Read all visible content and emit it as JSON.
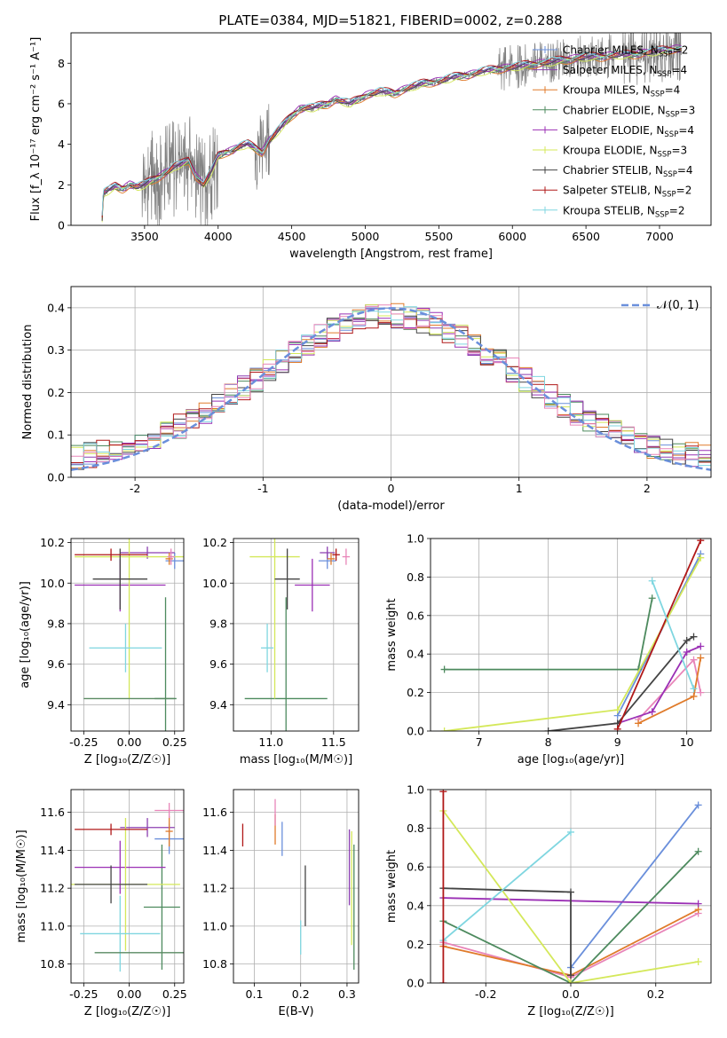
{
  "figure": {
    "title": "PLATE=0384, MJD=51821, FIBERID=0002, z=0.288"
  },
  "chart_data": [
    {
      "id": "spectrum",
      "type": "line",
      "title": "PLATE=0384, MJD=51821, FIBERID=0002, z=0.288",
      "xlabel": "wavelength [Angstrom, rest frame]",
      "ylabel": "Flux [f_λ 10⁻¹⁷ erg cm⁻² s⁻¹ A⁻¹]",
      "xlim": [
        3000,
        7350
      ],
      "ylim": [
        0,
        9.5
      ],
      "xticks": [
        3500,
        4000,
        4500,
        5000,
        5500,
        6000,
        6500,
        7000
      ],
      "yticks": [
        0,
        2,
        4,
        6,
        8
      ],
      "grid": false,
      "legend_position": "top-right",
      "data_color": "#808080",
      "continuum": {
        "x": [
          3210,
          3220,
          3250,
          3300,
          3350,
          3400,
          3450,
          3500,
          3550,
          3600,
          3650,
          3700,
          3750,
          3800,
          3850,
          3900,
          3950,
          4000,
          4050,
          4100,
          4150,
          4200,
          4250,
          4300,
          4350,
          4400,
          4450,
          4500,
          4550,
          4600,
          4650,
          4700,
          4750,
          4800,
          4850,
          4900,
          4950,
          5000,
          5100,
          5200,
          5300,
          5400,
          5500,
          5600,
          5700,
          5800,
          5900,
          6000,
          6100,
          6200,
          6300,
          6400,
          6500,
          6600,
          6700,
          6800,
          6900,
          7000,
          7100,
          7150
        ],
        "y": [
          0.0,
          1.6,
          1.7,
          1.9,
          1.8,
          2.0,
          1.9,
          2.0,
          2.2,
          2.4,
          2.6,
          2.9,
          3.0,
          3.2,
          2.4,
          2.0,
          2.6,
          3.4,
          3.6,
          3.7,
          3.9,
          4.0,
          3.8,
          3.6,
          4.2,
          4.6,
          5.0,
          5.4,
          5.7,
          5.8,
          5.8,
          5.9,
          6.0,
          6.2,
          6.1,
          6.0,
          6.2,
          6.4,
          6.6,
          6.5,
          6.8,
          7.0,
          7.1,
          7.3,
          7.4,
          7.6,
          7.7,
          7.8,
          7.9,
          8.0,
          8.1,
          8.2,
          8.3,
          8.3,
          8.4,
          8.4,
          8.5,
          8.6,
          8.7,
          8.7
        ]
      },
      "series": [
        {
          "name": "Chabrier MILES, N_SSP=2",
          "color": "#6a8fdb",
          "marker": "+",
          "offset": 0.05
        },
        {
          "name": "Salpeter MILES, N_SSP=4",
          "color": "#8c3fb0",
          "marker": "",
          "offset": -0.05
        },
        {
          "name": "Kroupa MILES, N_SSP=4",
          "color": "#e07b2b",
          "marker": "+",
          "offset": -0.1
        },
        {
          "name": "Chabrier ELODIE, N_SSP=3",
          "color": "#4d8a5e",
          "marker": "+",
          "offset": 0.0
        },
        {
          "name": "Salpeter ELODIE, N_SSP=4",
          "color": "#9b30b5",
          "marker": "+",
          "offset": 0.08
        },
        {
          "name": "Kroupa ELODIE, N_SSP=3",
          "color": "#d4e85a",
          "marker": "+",
          "offset": -0.08
        },
        {
          "name": "Chabrier STELIB, N_SSP=4",
          "color": "#444444",
          "marker": "+",
          "offset": 0.02
        },
        {
          "name": "Salpeter STELIB, N_SSP=2",
          "color": "#b01818",
          "marker": "+",
          "offset": 0.12
        },
        {
          "name": "Kroupa STELIB, N_SSP=2",
          "color": "#7fd6e0",
          "marker": "+",
          "offset": 0.1
        }
      ]
    },
    {
      "id": "residuals",
      "type": "line",
      "xlabel": "(data-model)/error",
      "ylabel": "Normed distribution",
      "xlim": [
        -2.5,
        2.5
      ],
      "ylim": [
        0,
        0.45
      ],
      "xticks": [
        -2,
        -1,
        0,
        1,
        2
      ],
      "yticks": [
        0.0,
        0.1,
        0.2,
        0.3,
        0.4
      ],
      "grid": true,
      "legend_position": "top-right",
      "gaussian": {
        "name": "𝒩(0, 1)",
        "color": "#6a8fdb",
        "style": "dashed"
      },
      "bin_width": 0.1,
      "series_colors": [
        "#6a8fdb",
        "#8c3fb0",
        "#e07b2b",
        "#4d8a5e",
        "#9b30b5",
        "#d4e85a",
        "#444444",
        "#b01818",
        "#7fd6e0",
        "#e885b9"
      ]
    },
    {
      "id": "age_vs_Z",
      "type": "scatter",
      "xlabel": "Z [log₁₀(Z/Z☉)]",
      "ylabel": "age  [log₁₀(age/yr)]",
      "xlim": [
        -0.32,
        0.3
      ],
      "ylim": [
        9.27,
        10.22
      ],
      "xticks": [
        -0.25,
        0.0,
        0.25
      ],
      "yticks": [
        9.4,
        9.6,
        9.8,
        10.0,
        10.2
      ],
      "grid": true,
      "points": [
        {
          "color": "#6a8fdb",
          "x": 0.25,
          "xerr": 0.05,
          "y": 10.11,
          "yerr": 0.04
        },
        {
          "color": "#8c3fb0",
          "x": 0.1,
          "xerr": 0.15,
          "y": 10.15,
          "yerr": 0.03
        },
        {
          "color": "#e07b2b",
          "x": 0.22,
          "xerr": 0.02,
          "y": 10.12,
          "yerr": 0.03
        },
        {
          "color": "#4d8a5e",
          "x": 0.2,
          "xerr": 0.06,
          "y": 9.43,
          "yerr": 0.5
        },
        {
          "color": "#9b30b5",
          "x": -0.05,
          "xerr": 0.25,
          "y": 9.99,
          "yerr": 0.13
        },
        {
          "color": "#d4e85a",
          "x": 0.0,
          "xerr": 0.3,
          "y": 10.13,
          "yerr": 0.7
        },
        {
          "color": "#444444",
          "x": -0.05,
          "xerr": 0.15,
          "y": 10.02,
          "yerr": 0.15
        },
        {
          "color": "#b01818",
          "x": -0.1,
          "xerr": 0.2,
          "y": 10.14,
          "yerr": 0.03
        },
        {
          "color": "#7fd6e0",
          "x": -0.02,
          "xerr": 0.2,
          "y": 9.68,
          "yerr": 0.12
        },
        {
          "color": "#e885b9",
          "x": 0.23,
          "xerr": 0.02,
          "y": 10.13,
          "yerr": 0.04
        },
        {
          "color": "#5a8a62",
          "x": 0.0,
          "xerr": 0.25,
          "y": 9.43,
          "yerr": 0.0
        }
      ]
    },
    {
      "id": "age_vs_mass",
      "type": "scatter",
      "xlabel": "mass [log₁₀(M/M☉)]",
      "ylabel": "",
      "xlim": [
        10.7,
        11.7
      ],
      "ylim": [
        9.27,
        10.22
      ],
      "xticks": [
        11.0,
        11.5
      ],
      "yticks": [
        9.4,
        9.6,
        9.8,
        10.0,
        10.2
      ],
      "grid": true,
      "points": [
        {
          "color": "#6a8fdb",
          "x": 11.45,
          "xerr": 0.07,
          "y": 10.11,
          "yerr": 0.04
        },
        {
          "color": "#8c3fb0",
          "x": 11.45,
          "xerr": 0.06,
          "y": 10.15,
          "yerr": 0.03
        },
        {
          "color": "#e07b2b",
          "x": 11.48,
          "xerr": 0.03,
          "y": 10.12,
          "yerr": 0.03
        },
        {
          "color": "#4d8a5e",
          "x": 11.12,
          "xerr": 0.33,
          "y": 9.43,
          "yerr": 0.5
        },
        {
          "color": "#9b30b5",
          "x": 11.33,
          "xerr": 0.14,
          "y": 9.99,
          "yerr": 0.13
        },
        {
          "color": "#d4e85a",
          "x": 11.03,
          "xerr": 0.2,
          "y": 10.13,
          "yerr": 0.7
        },
        {
          "color": "#444444",
          "x": 11.13,
          "xerr": 0.1,
          "y": 10.02,
          "yerr": 0.15
        },
        {
          "color": "#b01818",
          "x": 11.52,
          "xerr": 0.03,
          "y": 10.14,
          "yerr": 0.03
        },
        {
          "color": "#7fd6e0",
          "x": 10.97,
          "xerr": 0.05,
          "y": 9.68,
          "yerr": 0.12
        },
        {
          "color": "#e885b9",
          "x": 11.6,
          "xerr": 0.03,
          "y": 10.13,
          "yerr": 0.04
        }
      ]
    },
    {
      "id": "weight_vs_age",
      "type": "line",
      "xlabel": "age  [log₁₀(age/yr)]",
      "ylabel": "mass weight",
      "xlim": [
        6.3,
        10.35
      ],
      "ylim": [
        0.0,
        1.0
      ],
      "xticks": [
        7,
        8,
        9,
        10
      ],
      "yticks": [
        0.0,
        0.2,
        0.4,
        0.6,
        0.8,
        1.0
      ],
      "grid": true,
      "series": [
        {
          "color": "#6a8fdb",
          "x": [
            9.0,
            10.2
          ],
          "y": [
            0.08,
            0.92
          ]
        },
        {
          "color": "#e885b9",
          "x": [
            9.3,
            10.1,
            10.2
          ],
          "y": [
            0.06,
            0.37,
            0.2
          ]
        },
        {
          "color": "#e07b2b",
          "x": [
            9.3,
            10.1,
            10.2
          ],
          "y": [
            0.04,
            0.18,
            0.38
          ]
        },
        {
          "color": "#4d8a5e",
          "x": [
            6.5,
            9.3,
            9.5
          ],
          "y": [
            0.32,
            0.32,
            0.69
          ]
        },
        {
          "color": "#9b30b5",
          "x": [
            9.0,
            9.5,
            10.0,
            10.2
          ],
          "y": [
            0.04,
            0.1,
            0.41,
            0.44
          ]
        },
        {
          "color": "#d4e85a",
          "x": [
            6.5,
            9.0,
            10.2
          ],
          "y": [
            0.0,
            0.11,
            0.9
          ]
        },
        {
          "color": "#444444",
          "x": [
            8.0,
            9.0,
            10.0,
            10.1
          ],
          "y": [
            0.0,
            0.04,
            0.47,
            0.49
          ]
        },
        {
          "color": "#b01818",
          "x": [
            9.0,
            10.2
          ],
          "y": [
            0.01,
            0.99
          ]
        },
        {
          "color": "#7fd6e0",
          "x": [
            9.5,
            10.1
          ],
          "y": [
            0.78,
            0.22
          ]
        }
      ]
    },
    {
      "id": "mass_vs_Z",
      "type": "scatter",
      "xlabel": "Z [log₁₀(Z/Z☉)]",
      "ylabel": "mass [log₁₀(M/M☉)]",
      "xlim": [
        -0.32,
        0.3
      ],
      "ylim": [
        10.7,
        11.72
      ],
      "xticks": [
        -0.25,
        0.0,
        0.25
      ],
      "yticks": [
        10.8,
        11.0,
        11.2,
        11.4,
        11.6
      ],
      "grid": true,
      "points": [
        {
          "color": "#6a8fdb",
          "x": 0.22,
          "xerr": 0.08,
          "y": 11.46,
          "yerr": 0.08
        },
        {
          "color": "#8c3fb0",
          "x": 0.1,
          "xerr": 0.15,
          "y": 11.52,
          "yerr": 0.05
        },
        {
          "color": "#e07b2b",
          "x": 0.22,
          "xerr": 0.02,
          "y": 11.5,
          "yerr": 0.08
        },
        {
          "color": "#4d8a5e",
          "x": 0.18,
          "xerr": 0.1,
          "y": 11.1,
          "yerr": 0.33
        },
        {
          "color": "#9b30b5",
          "x": -0.05,
          "xerr": 0.25,
          "y": 11.31,
          "yerr": 0.14
        },
        {
          "color": "#d4e85a",
          "x": -0.02,
          "xerr": 0.3,
          "y": 11.22,
          "yerr": 0.35
        },
        {
          "color": "#444444",
          "x": -0.1,
          "xerr": 0.2,
          "y": 11.22,
          "yerr": 0.1
        },
        {
          "color": "#b01818",
          "x": -0.1,
          "xerr": 0.2,
          "y": 11.51,
          "yerr": 0.03
        },
        {
          "color": "#7fd6e0",
          "x": -0.05,
          "xerr": 0.22,
          "y": 10.96,
          "yerr": 0.2
        },
        {
          "color": "#e885b9",
          "x": 0.22,
          "xerr": 0.08,
          "y": 11.61,
          "yerr": 0.04
        },
        {
          "color": "#5a8a62",
          "x": 0.06,
          "xerr": 0.25,
          "y": 10.86,
          "yerr": 0.0
        }
      ]
    },
    {
      "id": "mass_vs_ebv",
      "type": "scatter",
      "xlabel": "E(B-V)",
      "ylabel": "",
      "xlim": [
        0.055,
        0.325
      ],
      "ylim": [
        10.7,
        11.72
      ],
      "xticks": [
        0.1,
        0.2,
        0.3
      ],
      "yticks": [
        10.8,
        11.0,
        11.2,
        11.4,
        11.6
      ],
      "grid": true,
      "points": [
        {
          "color": "#6a8fdb",
          "x": 0.16,
          "xerr": 0.0,
          "y": 11.46,
          "yerr": 0.09
        },
        {
          "color": "#8c3fb0",
          "x": 0.305,
          "xerr": 0.0,
          "y": 11.31,
          "yerr": 0.2
        },
        {
          "color": "#e07b2b",
          "x": 0.145,
          "xerr": 0.0,
          "y": 11.51,
          "yerr": 0.08
        },
        {
          "color": "#4d8a5e",
          "x": 0.315,
          "xerr": 0.0,
          "y": 11.1,
          "yerr": 0.33
        },
        {
          "color": "#d4e85a",
          "x": 0.31,
          "xerr": 0.0,
          "y": 11.2,
          "yerr": 0.3
        },
        {
          "color": "#444444",
          "x": 0.21,
          "xerr": 0.0,
          "y": 11.16,
          "yerr": 0.16
        },
        {
          "color": "#b01818",
          "x": 0.075,
          "xerr": 0.0,
          "y": 11.48,
          "yerr": 0.06
        },
        {
          "color": "#7fd6e0",
          "x": 0.2,
          "xerr": 0.0,
          "y": 10.94,
          "yerr": 0.09
        },
        {
          "color": "#e885b9",
          "x": 0.145,
          "xerr": 0.0,
          "y": 11.6,
          "yerr": 0.07
        }
      ]
    },
    {
      "id": "weight_vs_Z",
      "type": "line",
      "xlabel": "Z [log₁₀(Z/Z☉)]",
      "ylabel": "mass weight",
      "xlim": [
        -0.33,
        0.33
      ],
      "ylim": [
        0.0,
        1.0
      ],
      "xticks": [
        -0.2,
        0.0,
        0.2
      ],
      "yticks": [
        0.0,
        0.2,
        0.4,
        0.6,
        0.8,
        1.0
      ],
      "grid": true,
      "series": [
        {
          "color": "#6a8fdb",
          "x": [
            0.0,
            0.3
          ],
          "y": [
            0.08,
            0.92
          ]
        },
        {
          "color": "#e885b9",
          "x": [
            -0.3,
            0.0,
            0.3
          ],
          "y": [
            0.21,
            0.03,
            0.36
          ]
        },
        {
          "color": "#e07b2b",
          "x": [
            -0.3,
            0.0,
            0.3
          ],
          "y": [
            0.19,
            0.04,
            0.38
          ]
        },
        {
          "color": "#4d8a5e",
          "x": [
            -0.3,
            0.0,
            0.3
          ],
          "y": [
            0.32,
            0.0,
            0.68
          ]
        },
        {
          "color": "#9b30b5",
          "x": [
            -0.3,
            0.3
          ],
          "y": [
            0.44,
            0.41
          ]
        },
        {
          "color": "#d4e85a",
          "x": [
            -0.3,
            0.0,
            0.3
          ],
          "y": [
            0.89,
            0.0,
            0.11
          ]
        },
        {
          "color": "#444444",
          "x": [
            -0.3,
            0.0,
            0.0
          ],
          "y": [
            0.49,
            0.47,
            0.04
          ]
        },
        {
          "color": "#7fd6e0",
          "x": [
            -0.3,
            0.0
          ],
          "y": [
            0.22,
            0.78
          ]
        },
        {
          "color": "#b01818",
          "x": [
            -0.3,
            -0.3
          ],
          "y": [
            0.0,
            0.99
          ]
        }
      ]
    }
  ]
}
